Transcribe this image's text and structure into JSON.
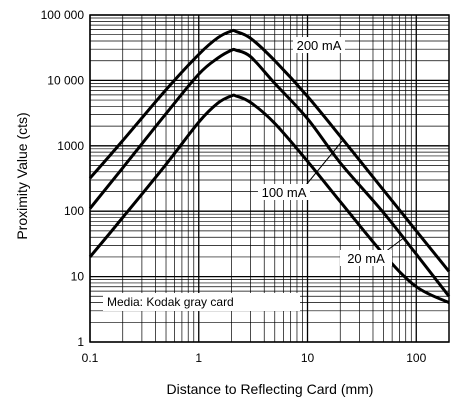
{
  "chart_data": {
    "type": "line",
    "xlabel": "Distance to Reflecting Card (mm)",
    "ylabel": "Proximity Value (cts)",
    "x_scale": "log",
    "y_scale": "log",
    "xlim": [
      0.1,
      200
    ],
    "ylim": [
      1,
      100000
    ],
    "x_ticks": [
      0.1,
      1,
      10,
      100
    ],
    "x_tick_labels": [
      "0.1",
      "1",
      "10",
      "100"
    ],
    "y_ticks": [
      1,
      10,
      100,
      1000,
      10000,
      100000
    ],
    "y_tick_labels": [
      "1",
      "10",
      "100",
      "1000",
      "10 000",
      "100 000"
    ],
    "grid": true,
    "annotation": "Media: Kodak gray card",
    "series": [
      {
        "name": "200 mA",
        "x": [
          0.1,
          0.2,
          0.5,
          1,
          1.5,
          2,
          2.2,
          3,
          5,
          10,
          20,
          50,
          100,
          200
        ],
        "y": [
          320,
          1200,
          7200,
          25000,
          45000,
          57000,
          56000,
          44000,
          20000,
          5700,
          1400,
          210,
          50,
          12
        ]
      },
      {
        "name": "100 mA",
        "x": [
          0.1,
          0.2,
          0.5,
          1,
          1.5,
          2,
          2.2,
          3,
          5,
          10,
          20,
          50,
          100,
          200
        ],
        "y": [
          110,
          460,
          3100,
          12500,
          22000,
          29000,
          29000,
          23000,
          9000,
          2600,
          550,
          95,
          22,
          5
        ]
      },
      {
        "name": "20 mA",
        "x": [
          0.1,
          0.2,
          0.5,
          1,
          1.5,
          2,
          2.2,
          3,
          5,
          10,
          20,
          50,
          100,
          200
        ],
        "y": [
          20,
          80,
          520,
          2300,
          4500,
          5800,
          5800,
          4600,
          2200,
          580,
          140,
          22,
          7,
          4
        ]
      }
    ]
  }
}
